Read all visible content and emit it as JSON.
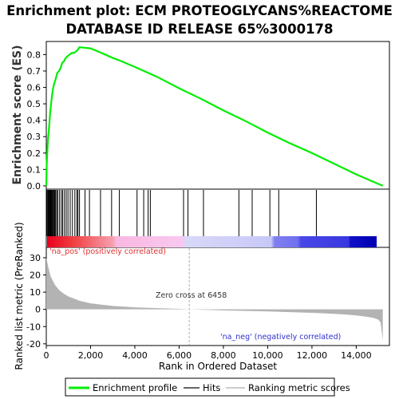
{
  "title_line1": "Enrichment plot: ECM PROTEOGLYCANS%REACTOME",
  "title_line2": "DATABASE ID RELEASE 65%3000178",
  "colors": {
    "es_line": "#00ee00",
    "hit": "#000000",
    "metric_fill": "#b3b3b3",
    "pos_label": "#e03030",
    "neg_label": "#3030d0",
    "zero_line": "#aaaaaa"
  },
  "chart_data": [
    {
      "type": "line",
      "name": "enrichment-profile",
      "ylabel": "Enrichment score (ES)",
      "xlim": [
        0,
        15500
      ],
      "ylim": [
        -0.02,
        0.88
      ],
      "y_ticks": [
        0.0,
        0.1,
        0.2,
        0.3,
        0.4,
        0.5,
        0.6,
        0.7,
        0.8
      ],
      "y_tick_labels": [
        "0.0",
        "0.1",
        "0.2",
        "0.3",
        "0.4",
        "0.5",
        "0.6",
        "0.7",
        "0.8"
      ],
      "grid": false,
      "x": [
        0,
        20,
        50,
        80,
        110,
        140,
        170,
        210,
        250,
        300,
        350,
        420,
        500,
        580,
        650,
        720,
        800,
        880,
        960,
        1050,
        1150,
        1250,
        1350,
        1420,
        1500,
        1700,
        2000,
        2500,
        3000,
        3300,
        4000,
        5000,
        6000,
        7000,
        8000,
        9000,
        10000,
        11000,
        12000,
        13000,
        14000,
        15200
      ],
      "y": [
        0.0,
        0.13,
        0.22,
        0.29,
        0.33,
        0.38,
        0.44,
        0.49,
        0.54,
        0.59,
        0.62,
        0.65,
        0.69,
        0.7,
        0.72,
        0.75,
        0.76,
        0.78,
        0.79,
        0.8,
        0.81,
        0.81,
        0.82,
        0.83,
        0.845,
        0.842,
        0.838,
        0.81,
        0.78,
        0.765,
        0.725,
        0.665,
        0.595,
        0.53,
        0.46,
        0.395,
        0.325,
        0.26,
        0.2,
        0.135,
        0.07,
        0.0
      ]
    },
    {
      "type": "scatter",
      "name": "hits",
      "hit_ranks": [
        20,
        60,
        90,
        120,
        150,
        180,
        210,
        240,
        270,
        300,
        340,
        380,
        420,
        470,
        520,
        600,
        680,
        740,
        820,
        900,
        980,
        1080,
        1180,
        1290,
        1380,
        1430,
        1500,
        1750,
        1950,
        2450,
        2950,
        3300,
        4100,
        4400,
        4600,
        4700,
        6200,
        6400,
        7100,
        8700,
        9300,
        10100,
        10500,
        12200
      ]
    },
    {
      "type": "area",
      "name": "ranked-list-metric",
      "ylabel": "Ranked list metric (PreRanked)",
      "xlabel": "Rank in Ordered Dataset",
      "xlim": [
        0,
        15500
      ],
      "ylim": [
        -21,
        36
      ],
      "x_ticks": [
        0,
        2000,
        4000,
        6000,
        8000,
        10000,
        12000,
        14000
      ],
      "x_tick_labels": [
        "0",
        "2,000",
        "4,000",
        "6,000",
        "8,000",
        "10,000",
        "12,000",
        "14,000"
      ],
      "y_ticks": [
        -20,
        -10,
        0,
        10,
        20,
        30
      ],
      "y_tick_labels": [
        "-20",
        "-10",
        "0",
        "10",
        "20",
        "30"
      ],
      "x": [
        0,
        50,
        100,
        200,
        400,
        600,
        800,
        1000,
        1500,
        2000,
        3000,
        4000,
        5000,
        6000,
        6458,
        7000,
        8000,
        9000,
        10000,
        11000,
        12000,
        13000,
        13500,
        14000,
        14500,
        14800,
        15000,
        15100,
        15200
      ],
      "y": [
        30,
        27,
        24,
        19,
        14,
        11,
        9,
        7.5,
        5,
        3.5,
        2,
        1.2,
        0.7,
        0.3,
        0,
        -0.2,
        -0.6,
        -0.9,
        -1.2,
        -1.6,
        -2,
        -2.6,
        -3,
        -3.5,
        -4.3,
        -5,
        -6,
        -7.5,
        -18
      ],
      "zero_cross_rank": 6458,
      "annotations": {
        "zero_cross": "Zero cross at 6458",
        "pos": "'na_pos' (positively correlated)",
        "neg": "'na_neg' (negatively correlated)"
      }
    }
  ],
  "legend": {
    "placement": "bottom",
    "items": [
      {
        "label": "Enrichment profile",
        "color": "#00ee00"
      },
      {
        "label": "Hits",
        "color": "#666666"
      },
      {
        "label": "Ranking metric scores",
        "color": "#cccccc"
      }
    ]
  }
}
